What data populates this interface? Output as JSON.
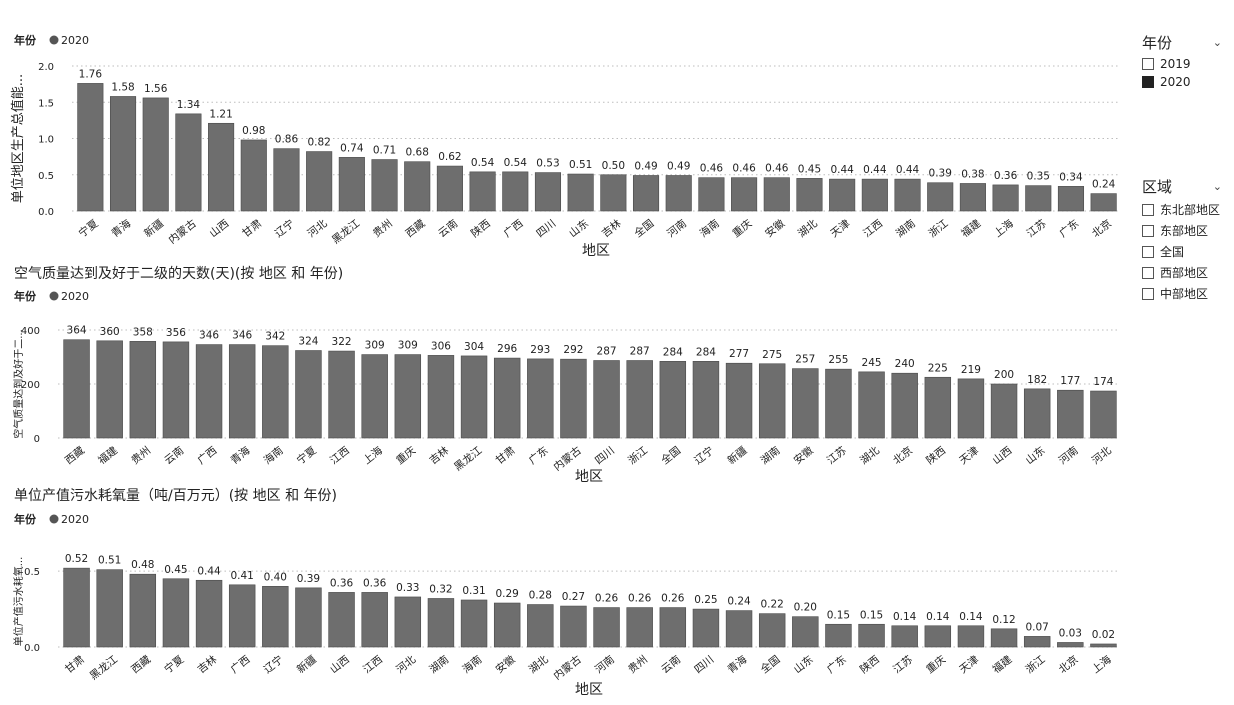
{
  "slicers": {
    "year": {
      "title": "年份",
      "options": [
        {
          "label": "2019",
          "checked": false
        },
        {
          "label": "2020",
          "checked": true
        }
      ]
    },
    "region": {
      "title": "区域",
      "options": [
        {
          "label": "东北部地区",
          "checked": false
        },
        {
          "label": "东部地区",
          "checked": false
        },
        {
          "label": "全国",
          "checked": false
        },
        {
          "label": "西部地区",
          "checked": false
        },
        {
          "label": "中部地区",
          "checked": false
        }
      ]
    }
  },
  "chart_data": [
    {
      "type": "bar",
      "title": "",
      "legend": {
        "title": "年份",
        "entries": [
          "2020"
        ],
        "placement": "top-left"
      },
      "xlabel": "地区",
      "ylabel": "单位地区生产总值能...",
      "ylim": [
        0,
        2.0
      ],
      "yticks": [
        "0.0",
        "0.5",
        "1.0",
        "1.5",
        "2.0"
      ],
      "ytick_values": [
        0,
        0.5,
        1.0,
        1.5,
        2.0
      ],
      "grid": true,
      "categories": [
        "宁夏",
        "青海",
        "新疆",
        "内蒙古",
        "山西",
        "甘肃",
        "辽宁",
        "河北",
        "黑龙江",
        "贵州",
        "西藏",
        "云南",
        "陕西",
        "广西",
        "四川",
        "山东",
        "吉林",
        "全国",
        "河南",
        "海南",
        "重庆",
        "安徽",
        "湖北",
        "天津",
        "江西",
        "湖南",
        "浙江",
        "福建",
        "上海",
        "江苏",
        "广东",
        "北京"
      ],
      "series": [
        {
          "name": "2020",
          "values": [
            1.76,
            1.58,
            1.56,
            1.34,
            1.21,
            0.98,
            0.86,
            0.82,
            0.74,
            0.71,
            0.68,
            0.62,
            0.54,
            0.54,
            0.53,
            0.51,
            0.5,
            0.49,
            0.49,
            0.46,
            0.46,
            0.46,
            0.45,
            0.44,
            0.44,
            0.44,
            0.39,
            0.38,
            0.36,
            0.35,
            0.34,
            0.24
          ]
        }
      ],
      "value_labels": [
        "1.76",
        "1.58",
        "1.56",
        "1.34",
        "1.21",
        "0.98",
        "0.86",
        "0.82",
        "0.74",
        "0.71",
        "0.68",
        "0.62",
        "0.54",
        "0.54",
        "0.53",
        "0.51",
        "0.50",
        "0.49",
        "0.49",
        "0.46",
        "0.46",
        "0.46",
        "0.45",
        "0.44",
        "0.44",
        "0.44",
        "0.39",
        "0.38",
        "0.36",
        "0.35",
        "0.34",
        "0.24"
      ]
    },
    {
      "type": "bar",
      "title": "空气质量达到及好于二级的天数(天)(按 地区 和 年份)",
      "legend": {
        "title": "年份",
        "entries": [
          "2020"
        ],
        "placement": "top-left"
      },
      "xlabel": "地区",
      "ylabel": "空气质量达到及好于二...",
      "ylim": [
        0,
        400
      ],
      "yticks": [
        "0",
        "200",
        "400"
      ],
      "ytick_values": [
        0,
        200,
        400
      ],
      "grid": true,
      "categories": [
        "西藏",
        "福建",
        "贵州",
        "云南",
        "广西",
        "青海",
        "海南",
        "宁夏",
        "江西",
        "上海",
        "重庆",
        "吉林",
        "黑龙江",
        "甘肃",
        "广东",
        "内蒙古",
        "四川",
        "浙江",
        "全国",
        "辽宁",
        "新疆",
        "湖南",
        "安徽",
        "江苏",
        "湖北",
        "北京",
        "陕西",
        "天津",
        "山西",
        "山东",
        "河南",
        "河北"
      ],
      "series": [
        {
          "name": "2020",
          "values": [
            364,
            360,
            358,
            356,
            346,
            346,
            342,
            324,
            322,
            309,
            309,
            306,
            304,
            296,
            293,
            292,
            287,
            287,
            284,
            284,
            277,
            275,
            257,
            255,
            245,
            240,
            225,
            219,
            200,
            182,
            177,
            174
          ]
        }
      ],
      "value_labels": [
        "364",
        "360",
        "358",
        "356",
        "346",
        "346",
        "342",
        "324",
        "322",
        "309",
        "309",
        "306",
        "304",
        "296",
        "293",
        "292",
        "287",
        "287",
        "284",
        "284",
        "277",
        "275",
        "257",
        "255",
        "245",
        "240",
        "225",
        "219",
        "200",
        "182",
        "177",
        "174"
      ]
    },
    {
      "type": "bar",
      "title": "单位产值污水耗氧量（吨/百万元）(按 地区 和 年份)",
      "legend": {
        "title": "年份",
        "entries": [
          "2020"
        ],
        "placement": "top-left"
      },
      "xlabel": "地区",
      "ylabel": "单位产值污水耗氧...",
      "ylim": [
        0,
        0.6
      ],
      "yticks": [
        "0.0",
        "0.5"
      ],
      "ytick_values": [
        0,
        0.5
      ],
      "grid": true,
      "categories": [
        "甘肃",
        "黑龙江",
        "西藏",
        "宁夏",
        "吉林",
        "广西",
        "辽宁",
        "新疆",
        "山西",
        "江西",
        "河北",
        "湖南",
        "海南",
        "安徽",
        "湖北",
        "内蒙古",
        "河南",
        "贵州",
        "云南",
        "四川",
        "青海",
        "全国",
        "山东",
        "广东",
        "陕西",
        "江苏",
        "重庆",
        "天津",
        "福建",
        "浙江",
        "北京",
        "上海"
      ],
      "series": [
        {
          "name": "2020",
          "values": [
            0.52,
            0.51,
            0.48,
            0.45,
            0.44,
            0.41,
            0.4,
            0.39,
            0.36,
            0.36,
            0.33,
            0.32,
            0.31,
            0.29,
            0.28,
            0.27,
            0.26,
            0.26,
            0.26,
            0.25,
            0.24,
            0.22,
            0.2,
            0.15,
            0.15,
            0.14,
            0.14,
            0.14,
            0.12,
            0.07,
            0.03,
            0.02
          ]
        }
      ],
      "value_labels": [
        "0.52",
        "0.51",
        "0.48",
        "0.45",
        "0.44",
        "0.41",
        "0.40",
        "0.39",
        "0.36",
        "0.36",
        "0.33",
        "0.32",
        "0.31",
        "0.29",
        "0.28",
        "0.27",
        "0.26",
        "0.26",
        "0.26",
        "0.25",
        "0.24",
        "0.22",
        "0.20",
        "0.15",
        "0.15",
        "0.14",
        "0.14",
        "0.14",
        "0.12",
        "0.07",
        "0.03",
        "0.02"
      ]
    }
  ],
  "colors": {
    "bar": "#6e6e6e",
    "bar_stroke": "#4a4a4a",
    "legend_dot": "#555555",
    "grid": "#bdbdbd",
    "text": "#222222"
  }
}
